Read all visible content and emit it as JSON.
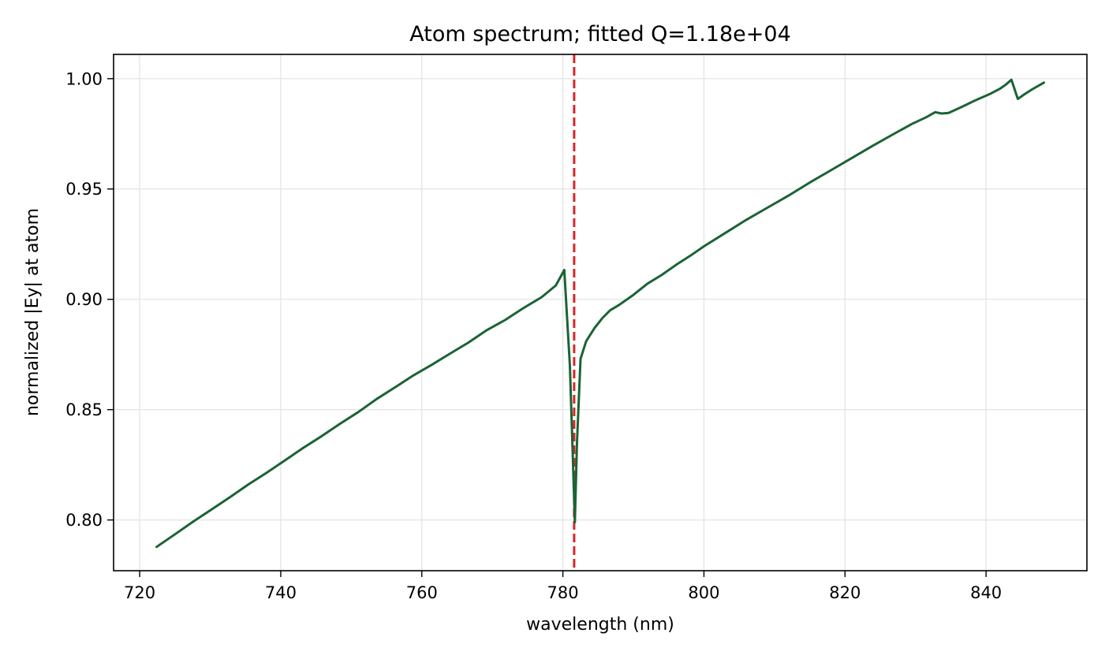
{
  "chart_data": {
    "type": "line",
    "title": "Atom spectrum; fitted Q=1.18e+04",
    "xlabel": "wavelength (nm)",
    "ylabel": "normalized |Ey| at atom",
    "xlim": [
      716.3,
      854.3
    ],
    "ylim": [
      0.777,
      1.011
    ],
    "xticks": [
      720,
      740,
      760,
      780,
      800,
      820,
      840
    ],
    "yticks": [
      0.8,
      0.85,
      0.9,
      0.95,
      1.0
    ],
    "xtick_labels": [
      "720",
      "740",
      "760",
      "780",
      "800",
      "820",
      "840"
    ],
    "ytick_labels": [
      "0.80",
      "0.85",
      "0.90",
      "0.95",
      "1.00"
    ],
    "grid": true,
    "resonance_line": {
      "x": 781.6,
      "color": "#d62728",
      "style": "dashed"
    },
    "series": [
      {
        "color": "#1b6334",
        "x": [
          722.4,
          725.0,
          727.6,
          730.2,
          732.8,
          735.4,
          738.0,
          740.6,
          743.2,
          745.8,
          748.4,
          751.0,
          753.6,
          756.2,
          758.8,
          761.4,
          764.0,
          766.6,
          769.2,
          771.8,
          774.4,
          777.0,
          779.0,
          780.2,
          781.0,
          781.4,
          781.7,
          782.0,
          782.5,
          783.3,
          784.5,
          785.6,
          786.7,
          788.0,
          790.0,
          792.0,
          794.0,
          796.0,
          798.0,
          800.0,
          803.0,
          806.0,
          809.0,
          812.0,
          815.0,
          818.0,
          821.0,
          824.0,
          827.0,
          829.5,
          831.5,
          832.8,
          833.7,
          834.7,
          836.5,
          838.5,
          840.5,
          842.0,
          842.8,
          843.6,
          844.5,
          845.4,
          846.5,
          848.2
        ],
        "y": [
          0.7878,
          0.7935,
          0.7993,
          0.8048,
          0.8103,
          0.8161,
          0.8214,
          0.827,
          0.8327,
          0.838,
          0.8436,
          0.8489,
          0.8548,
          0.8601,
          0.8655,
          0.8703,
          0.8754,
          0.8804,
          0.886,
          0.8906,
          0.896,
          0.901,
          0.9063,
          0.9133,
          0.87,
          0.83,
          0.799,
          0.835,
          0.873,
          0.881,
          0.887,
          0.8915,
          0.895,
          0.8975,
          0.902,
          0.9071,
          0.911,
          0.9155,
          0.9196,
          0.924,
          0.93,
          0.936,
          0.9415,
          0.947,
          0.9529,
          0.9585,
          0.9641,
          0.9697,
          0.9751,
          0.9795,
          0.9825,
          0.9848,
          0.9842,
          0.9845,
          0.9871,
          0.9902,
          0.993,
          0.9955,
          0.9973,
          0.9995,
          0.9908,
          0.9928,
          0.9951,
          0.9982
        ]
      }
    ]
  }
}
